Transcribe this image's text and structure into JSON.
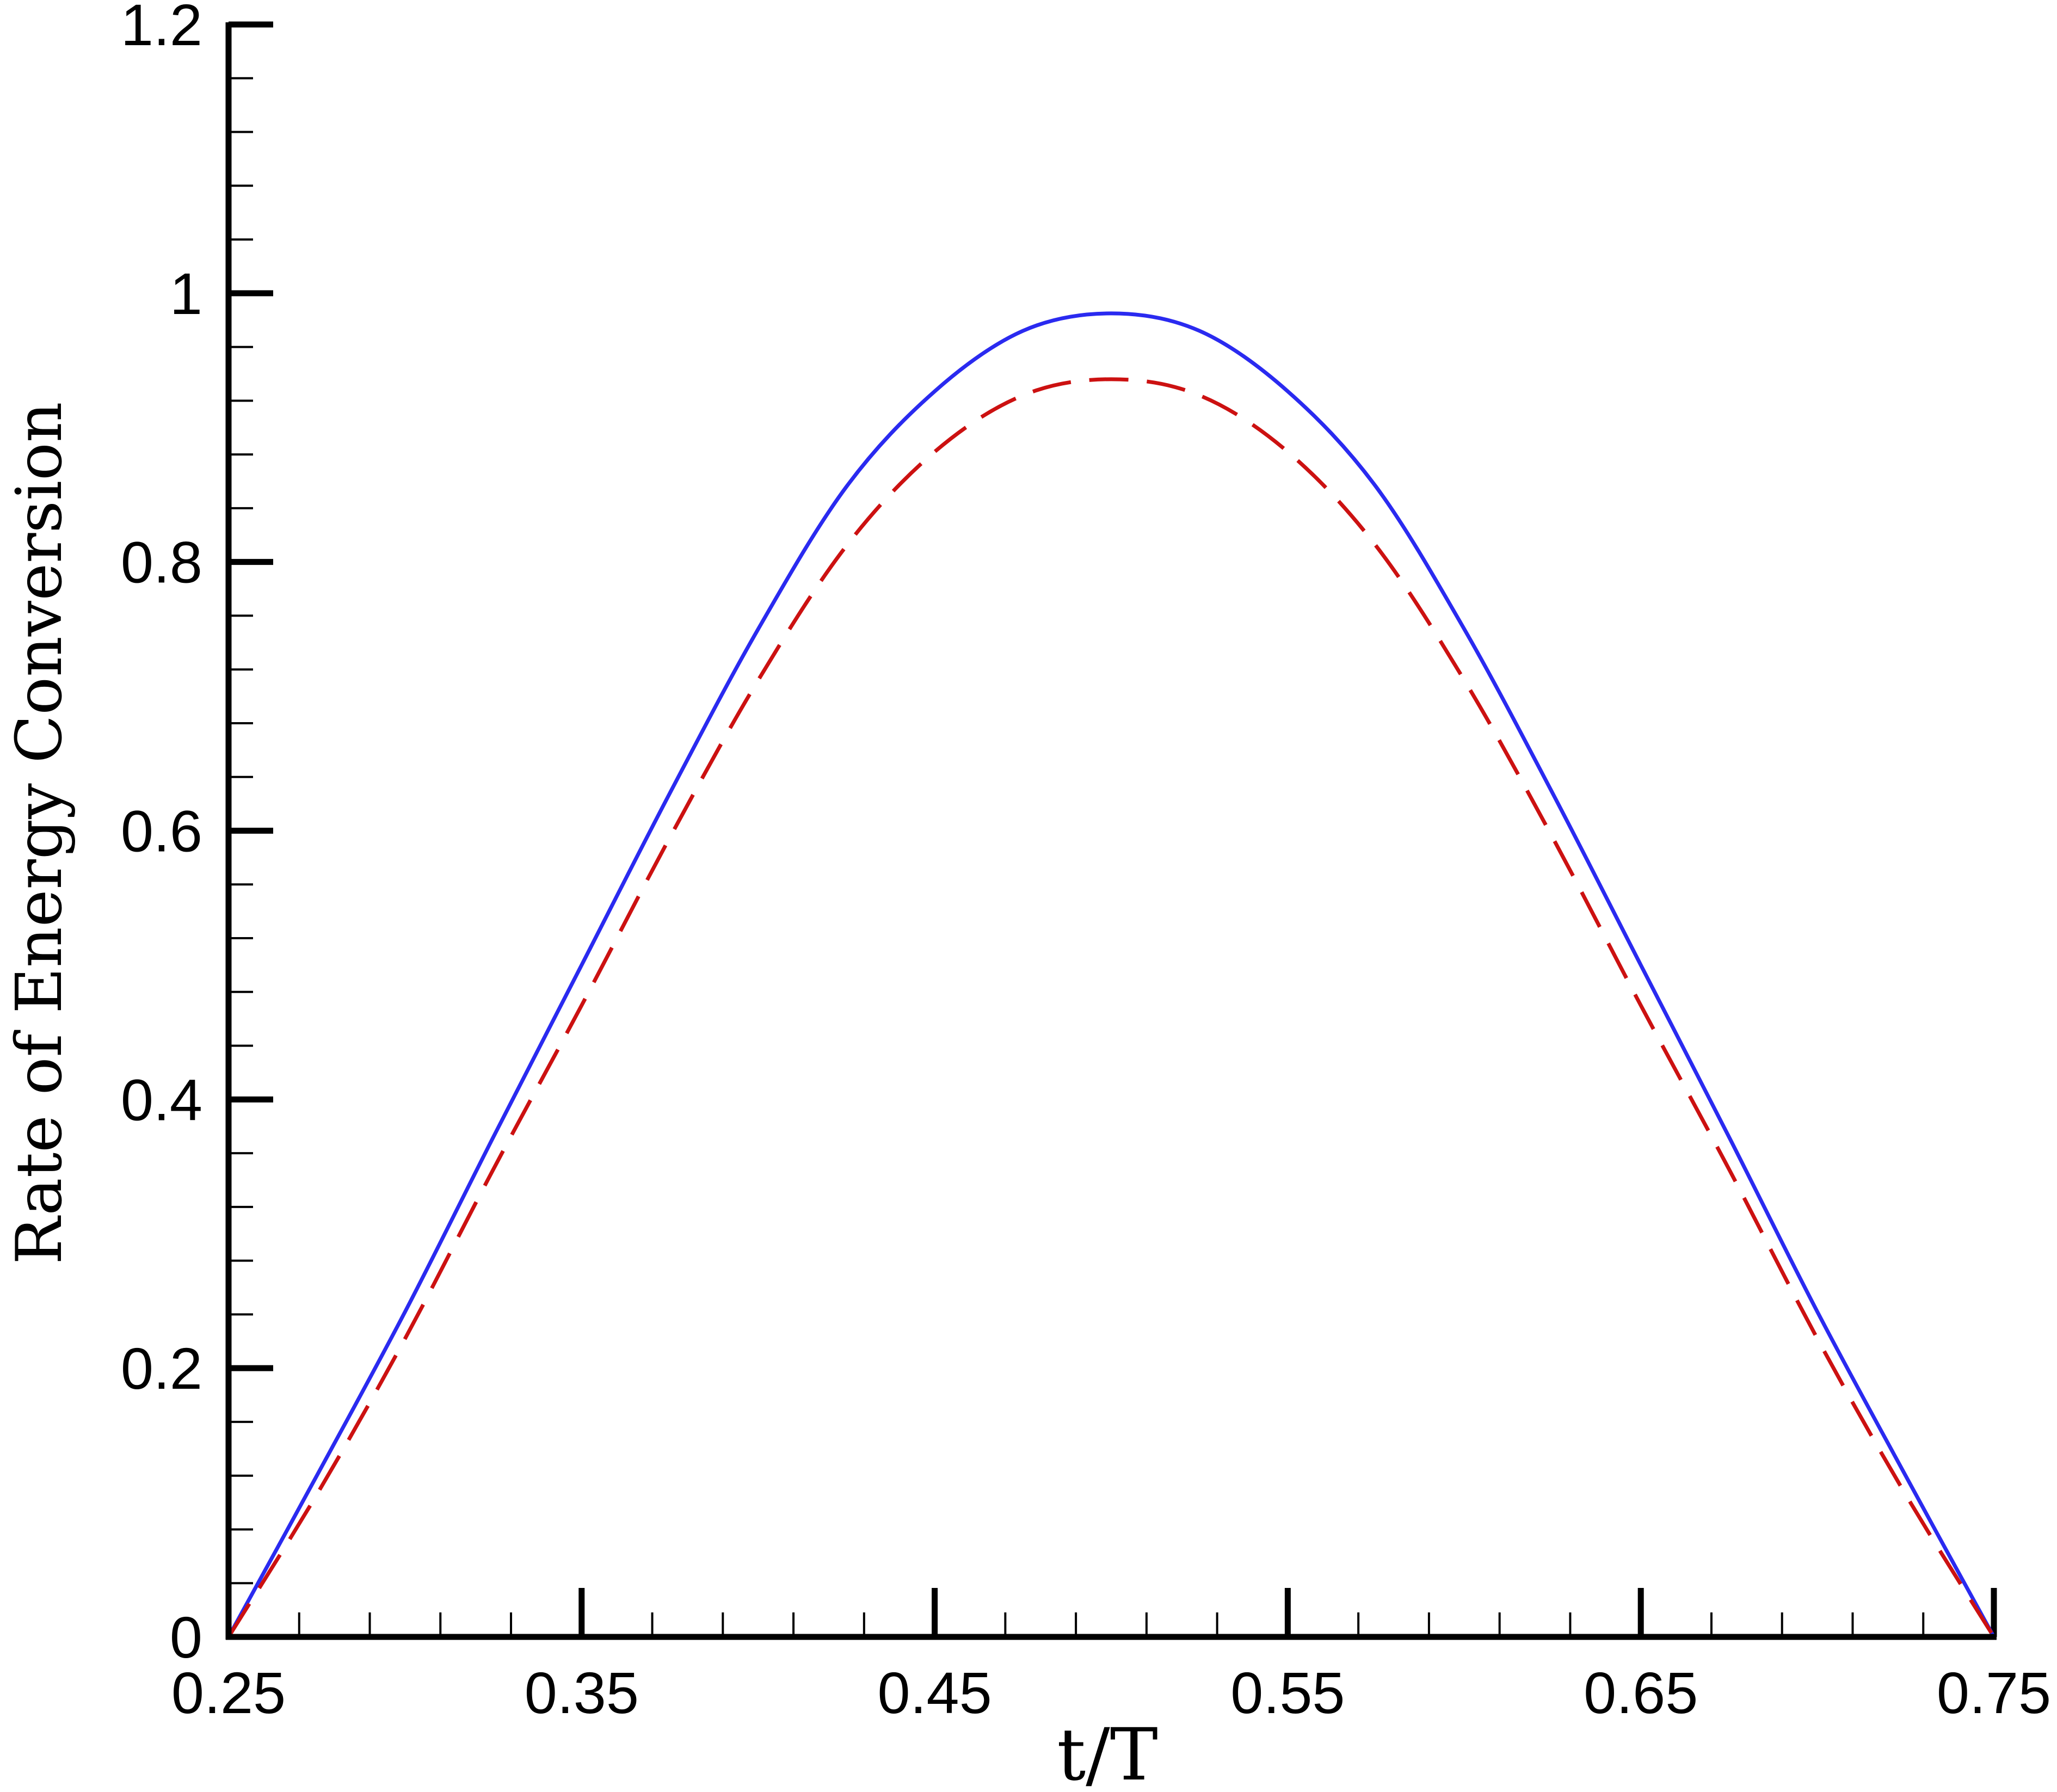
{
  "chart_data": {
    "type": "line",
    "title": "",
    "xlabel": "t/T",
    "ylabel": "Rate of Energy Conversion",
    "xlim": [
      0.25,
      0.75
    ],
    "ylim": [
      0,
      1.2
    ],
    "x_ticks": [
      "0.25",
      "0.35",
      "0.45",
      "0.55",
      "0.65",
      "0.75"
    ],
    "y_ticks": [
      "0",
      "0.2",
      "0.4",
      "0.6",
      "0.8",
      "1",
      "1.2"
    ],
    "grid": false,
    "legend": "none",
    "series": [
      {
        "color": "#2a2af0",
        "style": "solid",
        "x": [
          0.25,
          0.275,
          0.3,
          0.325,
          0.35,
          0.375,
          0.4,
          0.425,
          0.45,
          0.475,
          0.5,
          0.525,
          0.55,
          0.575,
          0.6,
          0.625,
          0.65,
          0.675,
          0.7,
          0.725,
          0.75
        ],
        "y": [
          0.0,
          0.12,
          0.242,
          0.372,
          0.5,
          0.628,
          0.75,
          0.856,
          0.927,
          0.972,
          0.985,
          0.972,
          0.927,
          0.856,
          0.75,
          0.628,
          0.5,
          0.372,
          0.242,
          0.12,
          0.0
        ]
      },
      {
        "color": "#cc1111",
        "style": "dashed",
        "x": [
          0.25,
          0.275,
          0.3,
          0.325,
          0.35,
          0.375,
          0.4,
          0.425,
          0.45,
          0.475,
          0.5,
          0.525,
          0.55,
          0.575,
          0.6,
          0.625,
          0.65,
          0.675,
          0.7,
          0.725,
          0.75
        ],
        "y": [
          0.0,
          0.106,
          0.222,
          0.348,
          0.47,
          0.595,
          0.712,
          0.812,
          0.882,
          0.924,
          0.936,
          0.924,
          0.882,
          0.812,
          0.712,
          0.595,
          0.47,
          0.348,
          0.222,
          0.106,
          0.0
        ]
      }
    ]
  }
}
